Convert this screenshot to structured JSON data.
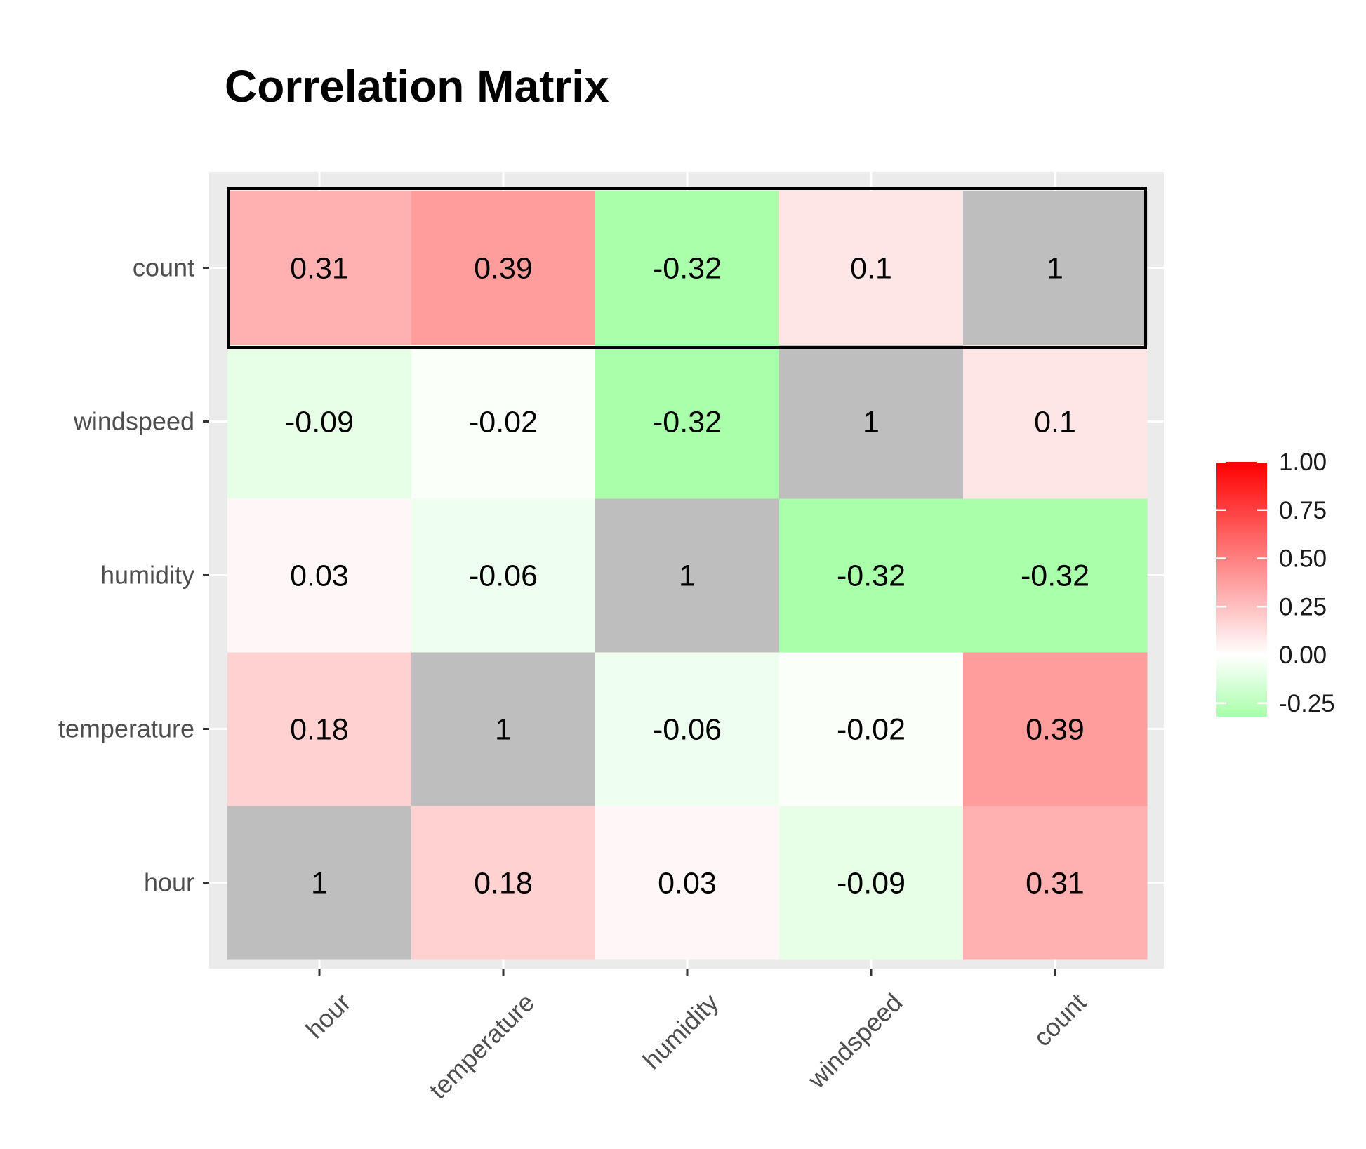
{
  "chart_data": {
    "type": "heatmap",
    "title": "Correlation Matrix",
    "xlabel": "",
    "ylabel": "",
    "x_categories": [
      "hour",
      "temperature",
      "humidity",
      "windspeed",
      "count"
    ],
    "y_categories": [
      "hour",
      "temperature",
      "humidity",
      "windspeed",
      "count"
    ],
    "values": [
      [
        1,
        0.18,
        0.03,
        -0.09,
        0.31
      ],
      [
        0.18,
        1,
        -0.06,
        -0.02,
        0.39
      ],
      [
        0.03,
        -0.06,
        1,
        -0.32,
        -0.32
      ],
      [
        -0.09,
        -0.02,
        -0.32,
        1,
        0.1
      ],
      [
        0.31,
        0.39,
        -0.32,
        0.1,
        1
      ]
    ],
    "value_labels": [
      [
        "1",
        "0.18",
        "0.03",
        "-0.09",
        "0.31"
      ],
      [
        "0.18",
        "1",
        "-0.06",
        "-0.02",
        "0.39"
      ],
      [
        "0.03",
        "-0.06",
        "1",
        "-0.32",
        "-0.32"
      ],
      [
        "-0.09",
        "-0.02",
        "-0.32",
        "1",
        "0.1"
      ],
      [
        "0.31",
        "0.39",
        "-0.32",
        "0.1",
        "1"
      ]
    ],
    "highlighted_row": "count",
    "color_scale": {
      "low": "#aaffaa",
      "mid": "#ffffff",
      "high": "#ff0000",
      "limits": [
        -0.32,
        1
      ],
      "diagonal_color": "#bebebe",
      "legend_ticks": [
        1,
        0.75,
        0.5,
        0.25,
        0,
        -0.25
      ],
      "legend_tick_labels": [
        "1.00",
        "0.75",
        "0.50",
        "0.25",
        "0.00",
        "-0.25"
      ]
    },
    "x_tick_rotation": 45,
    "grid": true,
    "legend_placement": "right",
    "panel_background": "#ebebeb"
  }
}
